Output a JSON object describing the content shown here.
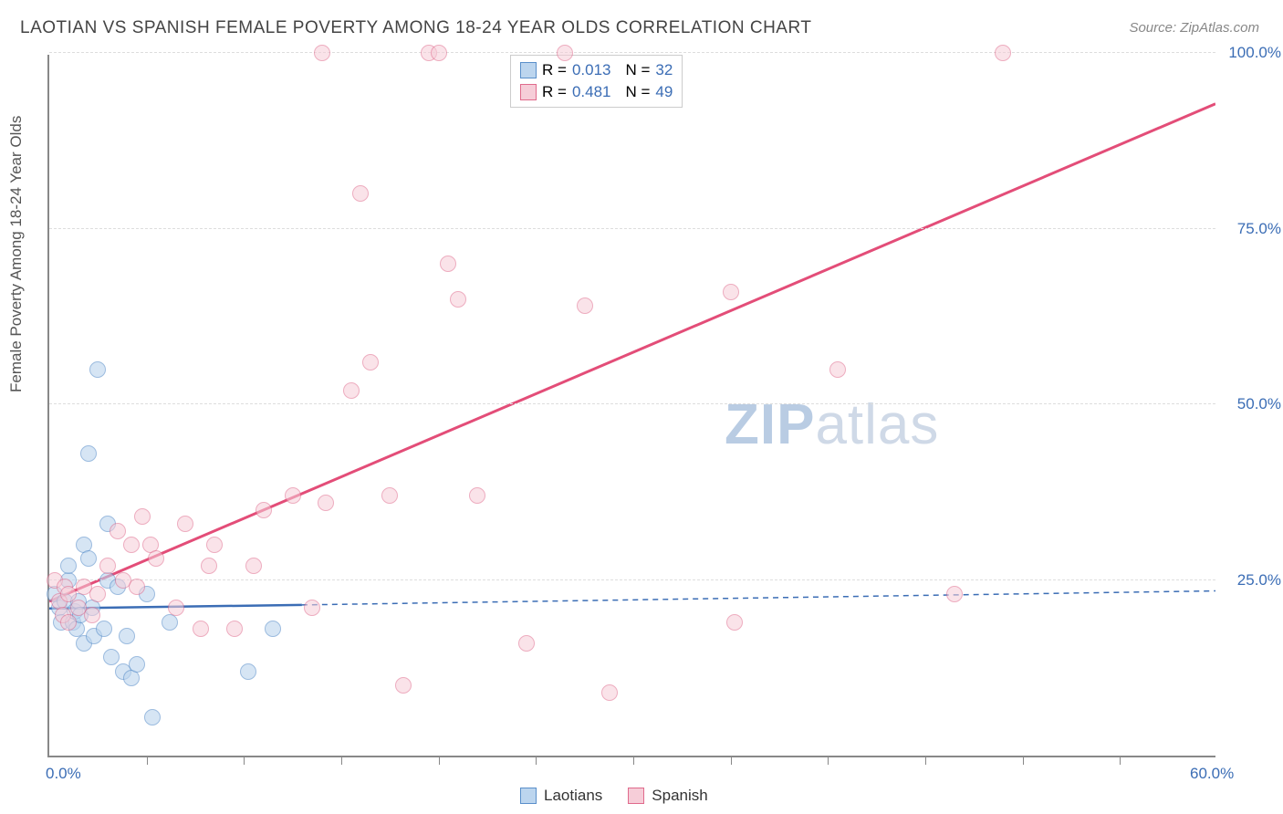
{
  "title": "LAOTIAN VS SPANISH FEMALE POVERTY AMONG 18-24 YEAR OLDS CORRELATION CHART",
  "source": "Source: ZipAtlas.com",
  "y_axis_label": "Female Poverty Among 18-24 Year Olds",
  "watermark_a": "ZIP",
  "watermark_b": "atlas",
  "chart": {
    "type": "scatter",
    "xlim": [
      0,
      60
    ],
    "ylim": [
      0,
      100
    ],
    "x_ticks_major": [
      0,
      60
    ],
    "x_ticks_minor": [
      5,
      10,
      15,
      20,
      25,
      30,
      35,
      40,
      45,
      50,
      55
    ],
    "y_gridlines": [
      25,
      50,
      75,
      100
    ],
    "x_tick_labels": {
      "0": "0.0%",
      "60": "60.0%"
    },
    "y_tick_labels": {
      "25": "25.0%",
      "50": "50.0%",
      "75": "75.0%",
      "100": "100.0%"
    },
    "background_color": "#ffffff",
    "grid_color": "#dddddd",
    "axis_color": "#888888",
    "label_color": "#3b6db5",
    "marker_radius": 9,
    "marker_stroke_width": 1.5,
    "series": [
      {
        "name": "Laotians",
        "fill": "#bcd5ee",
        "stroke": "#5a8fca",
        "fill_opacity": 0.6,
        "r": "0.013",
        "n": "32",
        "trend": {
          "x1": 0,
          "y1": 21,
          "x2": 13,
          "y2": 21.5,
          "x2_dash": 60,
          "y2_dash": 23.5,
          "color": "#3b6db5",
          "width": 2.5
        },
        "points": [
          [
            0.3,
            23
          ],
          [
            0.5,
            21
          ],
          [
            0.6,
            19
          ],
          [
            0.8,
            22
          ],
          [
            1.0,
            25
          ],
          [
            1.0,
            27
          ],
          [
            1.2,
            19
          ],
          [
            1.3,
            20.5
          ],
          [
            1.4,
            18
          ],
          [
            1.5,
            22
          ],
          [
            1.6,
            20
          ],
          [
            1.8,
            30
          ],
          [
            1.8,
            16
          ],
          [
            2.0,
            28
          ],
          [
            2.0,
            43
          ],
          [
            2.2,
            21
          ],
          [
            2.3,
            17
          ],
          [
            2.5,
            55
          ],
          [
            2.8,
            18
          ],
          [
            3.0,
            33
          ],
          [
            3.0,
            25
          ],
          [
            3.2,
            14
          ],
          [
            3.5,
            24
          ],
          [
            3.8,
            12
          ],
          [
            4.0,
            17
          ],
          [
            4.2,
            11
          ],
          [
            4.5,
            13
          ],
          [
            5.0,
            23
          ],
          [
            5.3,
            5.5
          ],
          [
            6.2,
            19
          ],
          [
            10.2,
            12
          ],
          [
            11.5,
            18
          ]
        ]
      },
      {
        "name": "Spanish",
        "fill": "#f6cdd8",
        "stroke": "#e06a8c",
        "fill_opacity": 0.55,
        "r": "0.481",
        "n": "49",
        "trend": {
          "x1": 0,
          "y1": 22,
          "x2": 60,
          "y2": 93,
          "color": "#e34d78",
          "width": 3
        },
        "points": [
          [
            0.3,
            25
          ],
          [
            0.5,
            22
          ],
          [
            0.7,
            20
          ],
          [
            0.8,
            24
          ],
          [
            1.0,
            23
          ],
          [
            1.0,
            19
          ],
          [
            1.5,
            21
          ],
          [
            1.8,
            24
          ],
          [
            2.2,
            20
          ],
          [
            2.5,
            23
          ],
          [
            3.0,
            27
          ],
          [
            3.5,
            32
          ],
          [
            3.8,
            25
          ],
          [
            4.2,
            30
          ],
          [
            4.5,
            24
          ],
          [
            4.8,
            34
          ],
          [
            5.2,
            30
          ],
          [
            5.5,
            28
          ],
          [
            6.5,
            21
          ],
          [
            7.0,
            33
          ],
          [
            7.8,
            18
          ],
          [
            8.2,
            27
          ],
          [
            8.5,
            30
          ],
          [
            9.5,
            18
          ],
          [
            10.5,
            27
          ],
          [
            11.0,
            35
          ],
          [
            12.5,
            37
          ],
          [
            13.5,
            21
          ],
          [
            14.0,
            100
          ],
          [
            14.2,
            36
          ],
          [
            15.5,
            52
          ],
          [
            16.0,
            80
          ],
          [
            16.5,
            56
          ],
          [
            17.5,
            37
          ],
          [
            18.2,
            10
          ],
          [
            19.5,
            100
          ],
          [
            20.0,
            100
          ],
          [
            20.5,
            70
          ],
          [
            21.0,
            65
          ],
          [
            22.0,
            37
          ],
          [
            24.5,
            16
          ],
          [
            26.5,
            100
          ],
          [
            27.5,
            64
          ],
          [
            28.8,
            9
          ],
          [
            35.0,
            66
          ],
          [
            35.2,
            19
          ],
          [
            40.5,
            55
          ],
          [
            46.5,
            23
          ],
          [
            49.0,
            100
          ]
        ]
      }
    ]
  },
  "legend": {
    "r_label": "R =",
    "n_label": "N =",
    "r_color": "#3b6db5"
  },
  "bottom_legend": [
    {
      "label": "Laotians",
      "fill": "#bcd5ee",
      "stroke": "#5a8fca"
    },
    {
      "label": "Spanish",
      "fill": "#f6cdd8",
      "stroke": "#e06a8c"
    }
  ]
}
